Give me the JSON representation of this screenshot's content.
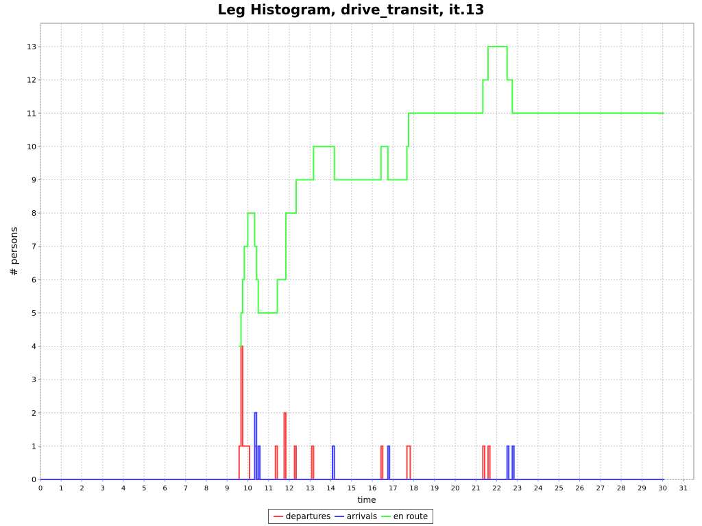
{
  "chart_data": {
    "type": "line",
    "title": "Leg Histogram, drive_transit, it.13",
    "xlabel": "time",
    "ylabel": "# persons",
    "xlim": [
      0,
      31.5
    ],
    "ylim": [
      0,
      13.7
    ],
    "xticks": [
      0,
      1,
      2,
      3,
      4,
      5,
      6,
      7,
      8,
      9,
      10,
      11,
      12,
      13,
      14,
      15,
      16,
      17,
      18,
      19,
      20,
      21,
      22,
      23,
      24,
      25,
      26,
      27,
      28,
      29,
      30,
      31
    ],
    "yticks": [
      0,
      1,
      2,
      3,
      4,
      5,
      6,
      7,
      8,
      9,
      10,
      11,
      12,
      13
    ],
    "grid": true,
    "legend_position": "bottom",
    "series": [
      {
        "name": "departures",
        "color": "#ff4040",
        "x": [
          0,
          9.58,
          9.58,
          9.67,
          9.67,
          9.75,
          9.75,
          9.83,
          9.83,
          10.08,
          10.08,
          10.33,
          10.33,
          10.42,
          10.42,
          11.33,
          11.33,
          11.42,
          11.42,
          11.75,
          11.75,
          11.83,
          11.83,
          12.25,
          12.25,
          12.33,
          12.33,
          13.08,
          13.08,
          13.17,
          13.17,
          16.42,
          16.42,
          16.5,
          16.5,
          17.67,
          17.67,
          17.83,
          17.83,
          21.33,
          21.33,
          21.42,
          21.42,
          21.58,
          21.58,
          21.67,
          21.67,
          30.08
        ],
        "y": [
          0,
          0,
          1,
          1,
          4,
          4,
          1,
          1,
          1,
          1,
          0,
          0,
          1,
          1,
          0,
          0,
          1,
          1,
          0,
          0,
          2,
          2,
          0,
          0,
          1,
          1,
          0,
          0,
          1,
          1,
          0,
          0,
          1,
          1,
          0,
          0,
          1,
          1,
          0,
          0,
          1,
          1,
          0,
          0,
          1,
          1,
          0,
          0
        ]
      },
      {
        "name": "arrivals",
        "color": "#4040ff",
        "x": [
          0,
          10.33,
          10.33,
          10.42,
          10.42,
          10.5,
          10.5,
          10.58,
          10.58,
          14.08,
          14.08,
          14.17,
          14.17,
          16.75,
          16.75,
          16.83,
          16.83,
          22.5,
          22.5,
          22.58,
          22.58,
          22.75,
          22.75,
          22.83,
          22.83,
          30.08
        ],
        "y": [
          0,
          0,
          2,
          2,
          0,
          0,
          1,
          1,
          0,
          0,
          1,
          1,
          0,
          0,
          1,
          1,
          0,
          0,
          1,
          1,
          0,
          0,
          1,
          1,
          0,
          0
        ]
      },
      {
        "name": "en route",
        "color": "#40ff40",
        "x": [
          9.58,
          9.67,
          9.67,
          9.75,
          9.75,
          9.83,
          9.83,
          10.0,
          10.0,
          10.33,
          10.33,
          10.42,
          10.42,
          10.5,
          10.5,
          11.42,
          11.42,
          11.83,
          11.83,
          12.33,
          12.33,
          13.17,
          13.17,
          14.17,
          14.17,
          16.42,
          16.42,
          16.75,
          16.75,
          17.67,
          17.67,
          17.75,
          17.75,
          21.33,
          21.33,
          21.58,
          21.58,
          22.5,
          22.5,
          22.75,
          22.75,
          30.08
        ],
        "y": [
          4,
          4,
          5,
          5,
          6,
          6,
          7,
          7,
          8,
          8,
          7,
          7,
          6,
          6,
          5,
          5,
          6,
          6,
          8,
          8,
          9,
          9,
          10,
          10,
          9,
          9,
          10,
          10,
          9,
          9,
          10,
          10,
          11,
          11,
          12,
          12,
          13,
          13,
          12,
          12,
          11,
          11
        ]
      }
    ]
  }
}
